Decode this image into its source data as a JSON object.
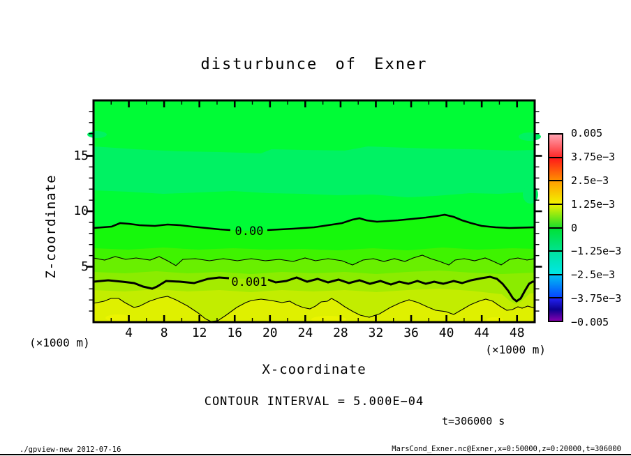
{
  "header": {
    "title": "disturbunce of Exner"
  },
  "chart_data": {
    "type": "heatmap",
    "title": "disturbunce of Exner",
    "xlabel": "X-coordinate",
    "ylabel": "Z-coordinate",
    "x_unit_label": "(×1000 m)",
    "y_unit_label": "(×1000 m)",
    "xlim": [
      0,
      50
    ],
    "ylim": [
      0,
      20
    ],
    "x_ticks": [
      4,
      8,
      12,
      16,
      20,
      24,
      28,
      32,
      36,
      40,
      44,
      48
    ],
    "x_minor_step": 2,
    "y_ticks": [
      5,
      10,
      15
    ],
    "y_minor_step": 1,
    "contour_interval_label": "CONTOUR INTERVAL = 5.000E−04",
    "time_label": "t=306000 s",
    "contour_labels": {
      "zero": "0.00",
      "one_thousandth": "0.001"
    },
    "contour_lines": [
      {
        "level": 0.0,
        "style": "thick",
        "approx_mean_z_km": 8.7
      },
      {
        "level": 0.0005,
        "style": "thin",
        "approx_mean_z_km": 5.8
      },
      {
        "level": 0.001,
        "style": "thick",
        "approx_mean_z_km": 4.0
      },
      {
        "level": 0.0015,
        "style": "thin",
        "approx_mean_z_km": 1.6
      }
    ],
    "fill_bands": [
      {
        "name": "background-green",
        "color": "#00FC36"
      },
      {
        "name": "teal-green-band",
        "color": "#00F263"
      },
      {
        "name": "band-just-below-zero",
        "color": "#16F80C"
      },
      {
        "name": "band-2",
        "color": "#3FF300"
      },
      {
        "name": "band-3",
        "color": "#69EF00"
      },
      {
        "name": "band-4",
        "color": "#8BEC00"
      },
      {
        "name": "band-5",
        "color": "#A4EB00"
      },
      {
        "name": "band-6",
        "color": "#C2ED00"
      },
      {
        "name": "band-7-yellow",
        "color": "#DFF000"
      },
      {
        "name": "yellow-pocket",
        "color": "#EBF400"
      }
    ],
    "colorbar": {
      "labels": [
        "0.005",
        "3.75e−3",
        "2.5e−3",
        "1.25e−3",
        "0",
        "−1.25e−3",
        "−2.5e−3",
        "−3.75e−3",
        "−0.005"
      ],
      "levels": [
        0.005,
        0.00375,
        0.0025,
        0.00125,
        0,
        -0.00125,
        -0.0025,
        -0.00375,
        -0.005
      ],
      "cells": [
        {
          "top": "#FFA2B0",
          "bottom": "#FF2A2A"
        },
        {
          "top": "#FF1A1A",
          "bottom": "#FF8C00"
        },
        {
          "top": "#FF9E00",
          "bottom": "#F2F200"
        },
        {
          "top": "#E6F200",
          "bottom": "#1EDE28"
        },
        {
          "top": "#00E136",
          "bottom": "#00E38E"
        },
        {
          "top": "#00E4A0",
          "bottom": "#00E6E6"
        },
        {
          "top": "#00BEF2",
          "bottom": "#0646FF"
        },
        {
          "top": "#2222F2",
          "mid": "#0D0090",
          "bottom": "#8400AE"
        }
      ]
    }
  },
  "footer": {
    "left": "./gpview-new  2012-07-16",
    "right": "MarsCond_Exner.nc@Exner,x=0:50000,z=0:20000,t=306000"
  }
}
